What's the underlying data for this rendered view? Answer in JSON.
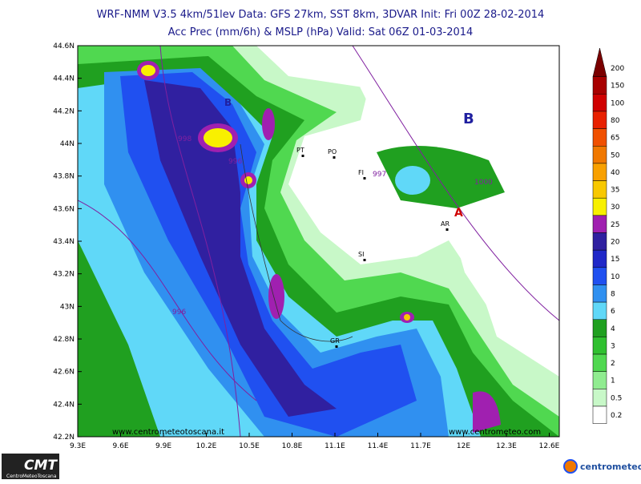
{
  "header": {
    "line1": "WRF-NMM V3.5 4km/51lev  Data: GFS 27km, SST 8km, 3DVAR  Init: Fri 00Z 28-02-2014",
    "line2": "Acc Prec (mm/6h) & MSLP (hPa)  Valid: Sat 06Z 01-03-2014"
  },
  "map": {
    "lat_labels": [
      "44.6N",
      "44.4N",
      "44.2N",
      "44N",
      "43.8N",
      "43.6N",
      "43.4N",
      "43.2N",
      "43N",
      "42.8N",
      "42.6N",
      "42.4N",
      "42.2N"
    ],
    "lon_labels": [
      "9.3E",
      "9.6E",
      "9.9E",
      "10.2E",
      "10.5E",
      "10.8E",
      "11.1E",
      "11.4E",
      "11.7E",
      "12E",
      "12.3E",
      "12.6E"
    ],
    "cities": [
      "PT",
      "PO",
      "FI",
      "SI",
      "AR",
      "GR"
    ],
    "isobar_labels": [
      "998",
      "996",
      "997",
      "1000",
      "996"
    ],
    "pressure_centers": [
      "B",
      "B",
      "A"
    ],
    "watermarks": [
      "www.centrometeotoscana.it",
      "www.centrometeo.com"
    ]
  },
  "colorbar": {
    "labels": [
      "200",
      "150",
      "100",
      "80",
      "65",
      "50",
      "40",
      "35",
      "30",
      "25",
      "20",
      "15",
      "10",
      "8",
      "6",
      "4",
      "3",
      "2",
      "1",
      "0.5",
      "0.2"
    ],
    "colors": [
      "#7a0000",
      "#a80000",
      "#d00000",
      "#e82000",
      "#f05000",
      "#f07800",
      "#f8a000",
      "#f8c800",
      "#f8f000",
      "#a020b0",
      "#3020a0",
      "#2028c8",
      "#2050f0",
      "#3090f0",
      "#60d8f8",
      "#20a020",
      "#30c030",
      "#50d850",
      "#90ec90",
      "#c8f8c8",
      "#ffffff"
    ]
  },
  "logos": {
    "left": "CMT",
    "left_sub": "CentroMeteoToscana",
    "right": "centrometeo"
  }
}
